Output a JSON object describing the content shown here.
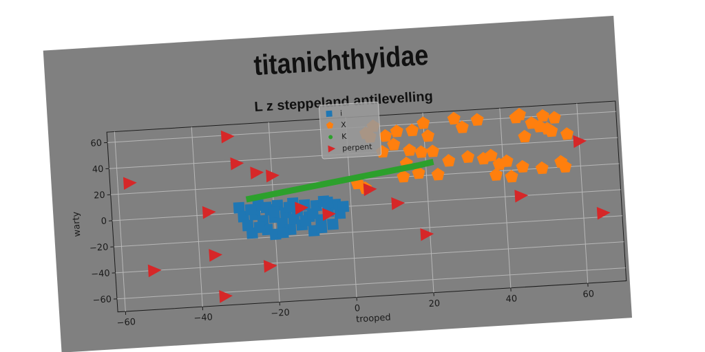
{
  "chart_data": {
    "type": "scatter",
    "suptitle": "titanichthyidae",
    "title": "L z steppeland antilevelling",
    "xlabel": "trooped",
    "ylabel": "warty",
    "xlim": [
      -62,
      70
    ],
    "ylim": [
      -70,
      68
    ],
    "xticks": [
      -60,
      -40,
      -20,
      0,
      20,
      40,
      60
    ],
    "yticks": [
      -60,
      -40,
      -20,
      0,
      20,
      40,
      60
    ],
    "xtick_labels": [
      "−60",
      "−40",
      "−20",
      "0",
      "20",
      "40",
      "60"
    ],
    "ytick_labels": [
      "−60",
      "−40",
      "−20",
      "0",
      "20",
      "40",
      "60"
    ],
    "grid": true,
    "legend_position": "top-center",
    "series": [
      {
        "name": "i",
        "marker": "square",
        "color": "#1f77b4",
        "points": [
          [
            -29,
            4
          ],
          [
            -28,
            -3
          ],
          [
            -27,
            -10
          ],
          [
            -26,
            -16
          ],
          [
            -25,
            -2
          ],
          [
            -24,
            5
          ],
          [
            -23,
            -7
          ],
          [
            -22,
            -14
          ],
          [
            -21,
            1
          ],
          [
            -20,
            -5
          ],
          [
            -20,
            -18
          ],
          [
            -19,
            4
          ],
          [
            -18,
            -10
          ],
          [
            -17,
            -2
          ],
          [
            -16,
            -15
          ],
          [
            -15,
            5
          ],
          [
            -15,
            -7
          ],
          [
            -14,
            -1
          ],
          [
            -13,
            -12
          ],
          [
            -12,
            3
          ],
          [
            -11,
            -6
          ],
          [
            -10,
            -17
          ],
          [
            -9,
            2
          ],
          [
            -8,
            -9
          ],
          [
            -7,
            5
          ],
          [
            -6,
            -3
          ],
          [
            -5,
            -13
          ],
          [
            -4,
            2
          ],
          [
            -3,
            -5
          ],
          [
            -2,
            0
          ],
          [
            -26,
            2
          ],
          [
            -24,
            -12
          ],
          [
            -22,
            3
          ],
          [
            -18,
            -17
          ],
          [
            -16,
            2
          ],
          [
            -12,
            -9
          ],
          [
            -10,
            -4
          ],
          [
            -8,
            -15
          ],
          [
            -6,
            4
          ],
          [
            -20,
            -1
          ]
        ]
      },
      {
        "name": "X",
        "marker": "pentagon",
        "color": "#ff7f0e",
        "points": [
          [
            2,
            17
          ],
          [
            4,
            13
          ],
          [
            5,
            55
          ],
          [
            6,
            52
          ],
          [
            7,
            60
          ],
          [
            9,
            40
          ],
          [
            10,
            52
          ],
          [
            12,
            45
          ],
          [
            13,
            55
          ],
          [
            14,
            20
          ],
          [
            15,
            30
          ],
          [
            16,
            40
          ],
          [
            17,
            55
          ],
          [
            18,
            22
          ],
          [
            19,
            38
          ],
          [
            20,
            60
          ],
          [
            21,
            50
          ],
          [
            22,
            38
          ],
          [
            23,
            20
          ],
          [
            26,
            30
          ],
          [
            28,
            62
          ],
          [
            30,
            55
          ],
          [
            31,
            32
          ],
          [
            34,
            60
          ],
          [
            35,
            30
          ],
          [
            37,
            32
          ],
          [
            38,
            17
          ],
          [
            39,
            25
          ],
          [
            41,
            27
          ],
          [
            42,
            15
          ],
          [
            44,
            60
          ],
          [
            45,
            22
          ],
          [
            46,
            45
          ],
          [
            48,
            55
          ],
          [
            50,
            52
          ],
          [
            50,
            20
          ],
          [
            51,
            60
          ],
          [
            52,
            50
          ],
          [
            53,
            48
          ],
          [
            54,
            58
          ],
          [
            55,
            24
          ],
          [
            56,
            20
          ],
          [
            57,
            45
          ],
          [
            45,
            62
          ]
        ]
      },
      {
        "name": "K",
        "marker": "line",
        "color": "#2ca02c",
        "points": [
          [
            -27,
            10
          ],
          [
            -22,
            12
          ],
          [
            -17,
            14
          ],
          [
            -12,
            16
          ],
          [
            -7,
            18
          ],
          [
            -2,
            20
          ],
          [
            3,
            22
          ],
          [
            8,
            24
          ],
          [
            13,
            26
          ],
          [
            18,
            28
          ],
          [
            22,
            30
          ]
        ]
      },
      {
        "name": "perpent",
        "marker": "triangle-right",
        "color": "#d62728",
        "points": [
          [
            -57,
            28
          ],
          [
            -52,
            -40
          ],
          [
            -37,
            2
          ],
          [
            -36,
            -31
          ],
          [
            -34,
            -63
          ],
          [
            -31,
            59
          ],
          [
            -29,
            38
          ],
          [
            -24,
            30
          ],
          [
            -22,
            -42
          ],
          [
            -20,
            27
          ],
          [
            -13,
            1
          ],
          [
            -6,
            -5
          ],
          [
            5,
            12
          ],
          [
            12,
            0
          ],
          [
            19,
            -25
          ],
          [
            44,
            0
          ],
          [
            60,
            39
          ],
          [
            65,
            -17
          ]
        ]
      }
    ]
  }
}
